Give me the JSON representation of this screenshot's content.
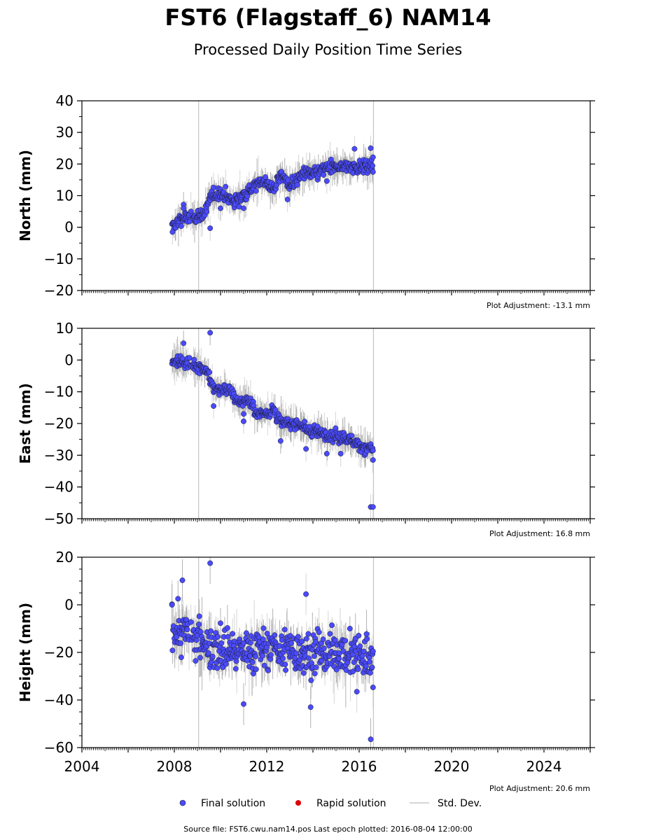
{
  "title": "FST6 (Flagstaff_6) NAM14",
  "subtitle": "Processed Daily Position Time Series",
  "legend": {
    "final_label": "Final solution",
    "rapid_label": "Rapid solution",
    "std_label": "Std. Dev."
  },
  "footer": "Source file: FST6.cwu.nam14.pos  Last epoch plotted: 2016-08-04 12:00:00",
  "colors": {
    "final": "#4a4aff",
    "rapid": "#e00000",
    "std": "#c8c8c8",
    "edge": "#1a1a1a"
  },
  "chart_data": [
    {
      "type": "scatter",
      "ylabel": "North (mm)",
      "adjustment": "Plot Adjustment: -13.1 mm",
      "xlim": [
        2004,
        2026
      ],
      "ylim": [
        -20,
        40
      ],
      "yticks": [
        -20,
        -10,
        0,
        10,
        20,
        30,
        40
      ],
      "ytick_labels": [
        "−20",
        "−10",
        "0",
        "10",
        "20",
        "30",
        "40"
      ],
      "xticks": [
        2004,
        2008,
        2012,
        2016,
        2020,
        2024
      ],
      "trend": [
        [
          2007.9,
          0
        ],
        [
          2008.3,
          3
        ],
        [
          2008.8,
          3
        ],
        [
          2009.3,
          4
        ],
        [
          2009.6,
          10
        ],
        [
          2010.0,
          11
        ],
        [
          2010.6,
          8
        ],
        [
          2011.3,
          12
        ],
        [
          2011.8,
          15
        ],
        [
          2012.3,
          12
        ],
        [
          2012.6,
          17
        ],
        [
          2013.0,
          13
        ],
        [
          2013.6,
          17
        ],
        [
          2014.2,
          17
        ],
        [
          2014.6,
          19
        ],
        [
          2015.2,
          19
        ],
        [
          2015.6,
          19
        ],
        [
          2016.2,
          19
        ],
        [
          2016.6,
          20
        ]
      ],
      "outliers": [
        [
          2007.92,
          -1.5
        ],
        [
          2008.4,
          7.2
        ],
        [
          2008.4,
          6.0
        ],
        [
          2009.55,
          -0.3
        ],
        [
          2010.0,
          6
        ],
        [
          2010.8,
          6.5
        ],
        [
          2011.0,
          6.0
        ],
        [
          2014.6,
          14.6
        ],
        [
          2015.8,
          24.8
        ],
        [
          2016.5,
          25
        ],
        [
          2016.6,
          17.5
        ],
        [
          2012.9,
          8.8
        ]
      ],
      "final": [],
      "rapid": []
    },
    {
      "type": "scatter",
      "ylabel": "East (mm)",
      "adjustment": "Plot Adjustment: 16.8 mm",
      "xlim": [
        2004,
        2026
      ],
      "ylim": [
        -50,
        10
      ],
      "yticks": [
        -50,
        -40,
        -30,
        -20,
        -10,
        0,
        10
      ],
      "ytick_labels": [
        "−50",
        "−40",
        "−30",
        "−20",
        "−10",
        "0",
        "10"
      ],
      "xticks": [
        2004,
        2008,
        2012,
        2016,
        2020,
        2024
      ],
      "trend": [
        [
          2007.9,
          0
        ],
        [
          2008.5,
          -1
        ],
        [
          2009.0,
          -2
        ],
        [
          2009.4,
          -3
        ],
        [
          2009.7,
          -9
        ],
        [
          2010.3,
          -9
        ],
        [
          2010.7,
          -13
        ],
        [
          2011.2,
          -13
        ],
        [
          2011.6,
          -17
        ],
        [
          2012.3,
          -16
        ],
        [
          2012.6,
          -20
        ],
        [
          2013.4,
          -20
        ],
        [
          2013.8,
          -22
        ],
        [
          2014.5,
          -23
        ],
        [
          2014.9,
          -24
        ],
        [
          2015.6,
          -25
        ],
        [
          2016.0,
          -27
        ],
        [
          2016.6,
          -28
        ]
      ],
      "outliers": [
        [
          2008.4,
          5.3
        ],
        [
          2009.55,
          8.6
        ],
        [
          2009.7,
          -14.5
        ],
        [
          2011.0,
          -19.3
        ],
        [
          2012.6,
          -25.5
        ],
        [
          2013.7,
          -28
        ],
        [
          2014.6,
          -29.5
        ],
        [
          2015.2,
          -29.5
        ],
        [
          2016.5,
          -46.3
        ],
        [
          2016.6,
          -46.3
        ],
        [
          2016.6,
          -31.5
        ],
        [
          2011.0,
          -17
        ]
      ],
      "final": [],
      "rapid": []
    },
    {
      "type": "scatter",
      "ylabel": "Height (mm)",
      "adjustment": "Plot Adjustment: 20.6 mm",
      "xlim": [
        2004,
        2026
      ],
      "ylim": [
        -60,
        20
      ],
      "yticks": [
        -60,
        -40,
        -20,
        0,
        20
      ],
      "ytick_labels": [
        "−60",
        "−40",
        "−20",
        "0",
        "20"
      ],
      "xticks": [
        2004,
        2008,
        2012,
        2016,
        2020,
        2024
      ],
      "xtick_labels": [
        "2004",
        "2008",
        "2012",
        "2016",
        "2020",
        "2024"
      ],
      "trend": [
        [
          2007.9,
          -10
        ],
        [
          2008.5,
          -12
        ],
        [
          2009.0,
          -15
        ],
        [
          2010.0,
          -18
        ],
        [
          2011.0,
          -19
        ],
        [
          2012.0,
          -18
        ],
        [
          2013.0,
          -19
        ],
        [
          2014.0,
          -20
        ],
        [
          2015.0,
          -20
        ],
        [
          2016.0,
          -22
        ],
        [
          2016.6,
          -22
        ]
      ],
      "outliers": [
        [
          2007.9,
          0
        ],
        [
          2008.35,
          10.3
        ],
        [
          2009.55,
          17.5
        ],
        [
          2011.0,
          -41.7
        ],
        [
          2013.7,
          4.5
        ],
        [
          2013.9,
          -43
        ],
        [
          2016.5,
          -56.5
        ],
        [
          2015.9,
          -36.5
        ],
        [
          2016.6,
          -34.7
        ]
      ],
      "final": [],
      "rapid": []
    }
  ]
}
